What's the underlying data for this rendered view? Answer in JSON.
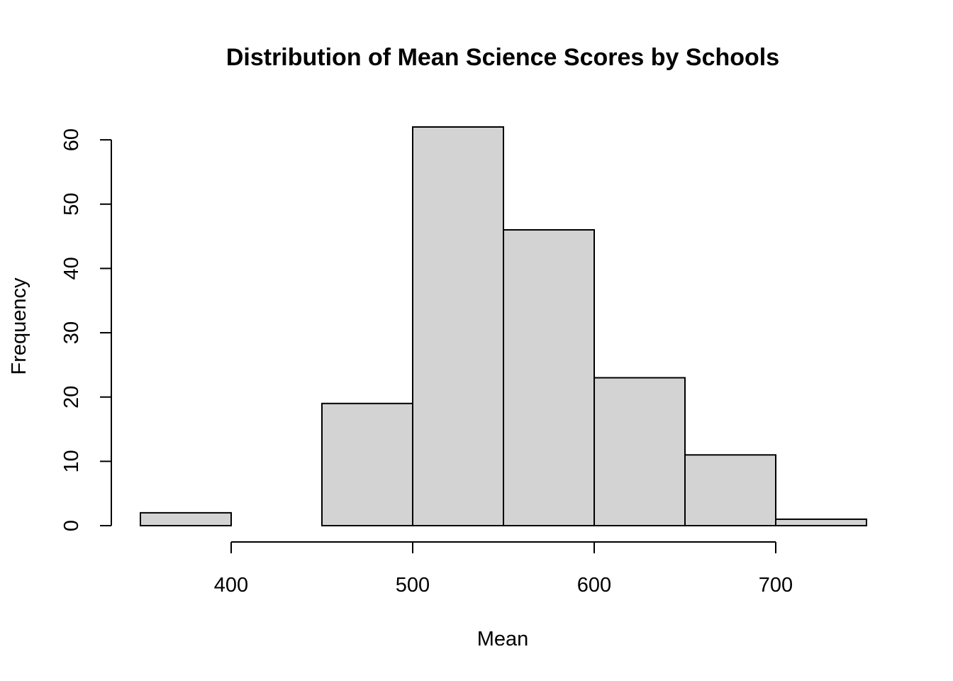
{
  "chart_data": {
    "type": "bar",
    "title": "Distribution of Mean Science Scores by Schools",
    "xlabel": "Mean",
    "ylabel": "Frequency",
    "bin_edges": [
      350,
      400,
      450,
      500,
      550,
      600,
      650,
      700,
      750
    ],
    "values": [
      2,
      0,
      19,
      62,
      46,
      23,
      11,
      1
    ],
    "xlim": [
      350,
      750
    ],
    "ylim": [
      0,
      62
    ],
    "x_ticks": [
      400,
      500,
      600,
      700
    ],
    "y_ticks": [
      0,
      10,
      20,
      30,
      40,
      50,
      60
    ],
    "bar_fill": "#d3d3d3",
    "bar_stroke": "#000000",
    "grid": false,
    "legend": "none"
  }
}
